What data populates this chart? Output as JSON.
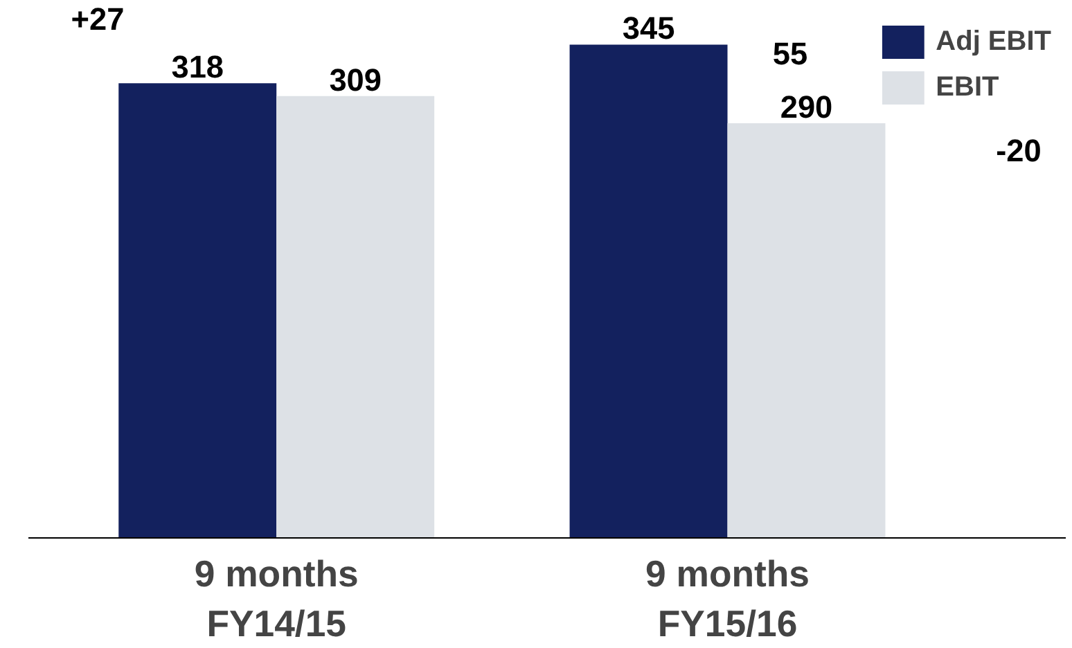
{
  "chart_data": {
    "type": "bar",
    "categories": [
      "9 months\nFY14/15",
      "9 months\nFY15/16"
    ],
    "series": [
      {
        "name": "Adj EBIT",
        "color": "#13215e",
        "values": [
          318,
          345
        ]
      },
      {
        "name": "EBIT",
        "color": "#dde1e6",
        "values": [
          309,
          290
        ]
      }
    ],
    "data_labels": true,
    "legend": "top right",
    "grid": false,
    "annotations": [
      "+27",
      "55",
      "-20"
    ]
  }
}
